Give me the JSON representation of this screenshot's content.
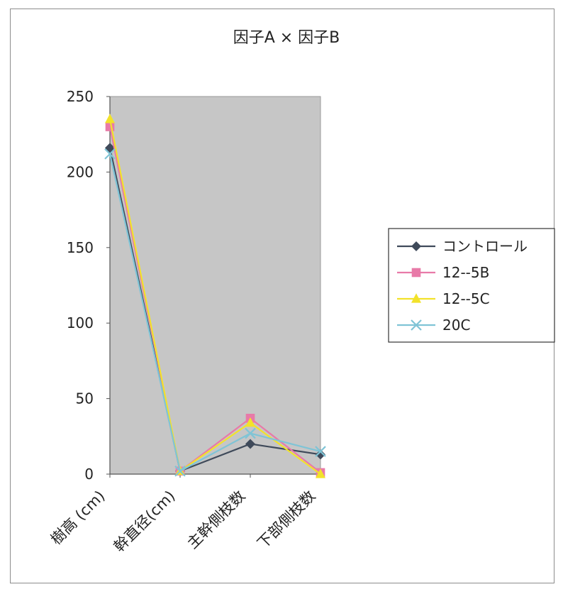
{
  "chart_data": {
    "type": "line",
    "title": "因子A × 因子B",
    "xlabel": "",
    "ylabel": "",
    "categories": [
      "樹高 (cm)",
      "幹直径(cm)",
      "主幹側枝数",
      "下部側枝数"
    ],
    "ylim": [
      0,
      250
    ],
    "yticks": [
      0,
      50,
      100,
      150,
      200,
      250
    ],
    "grid": false,
    "legend": "right",
    "series": [
      {
        "name": "コントロール",
        "values": [
          216,
          2,
          20,
          13
        ],
        "color": "#3f4a5a",
        "marker": "diamond"
      },
      {
        "name": "12--5B",
        "values": [
          230,
          2,
          37,
          1
        ],
        "color": "#e87aa8",
        "marker": "square"
      },
      {
        "name": "12--5C",
        "values": [
          235,
          2,
          34,
          0
        ],
        "color": "#f2e22a",
        "marker": "triangle"
      },
      {
        "name": "20C",
        "values": [
          212,
          2,
          27,
          15
        ],
        "color": "#7fc4d6",
        "marker": "x"
      }
    ],
    "plot_background": "#c6c6c6"
  }
}
